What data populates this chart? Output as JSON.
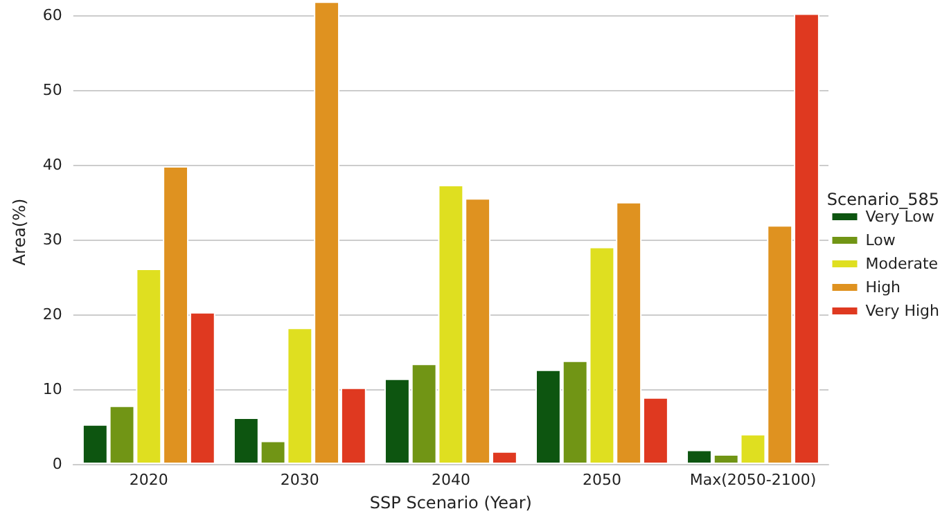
{
  "chart_data": {
    "type": "bar",
    "xlabel": "SSP Scenario (Year)",
    "ylabel": "Area(%)",
    "legend_title": "Scenario_585",
    "categories": [
      "2020",
      "2030",
      "2040",
      "2050",
      "Max(2050-2100)"
    ],
    "series": [
      {
        "name": "Very Low",
        "color": "#0d5510",
        "values": [
          5.3,
          6.2,
          11.4,
          12.6,
          1.9
        ]
      },
      {
        "name": "Low",
        "color": "#719515",
        "values": [
          7.8,
          3.1,
          13.4,
          13.8,
          1.3
        ]
      },
      {
        "name": "Moderate",
        "color": "#dfdf20",
        "values": [
          26.1,
          18.2,
          37.3,
          29.0,
          4.0
        ]
      },
      {
        "name": "High",
        "color": "#df9220",
        "values": [
          39.8,
          61.8,
          35.5,
          35.0,
          31.9
        ]
      },
      {
        "name": "Very High",
        "color": "#df3920",
        "values": [
          20.3,
          10.2,
          1.7,
          8.9,
          60.2
        ]
      }
    ],
    "ylim": [
      0,
      62
    ],
    "yticks": [
      0,
      10,
      20,
      30,
      40,
      50,
      60
    ],
    "grid": "y",
    "legend": "right"
  }
}
